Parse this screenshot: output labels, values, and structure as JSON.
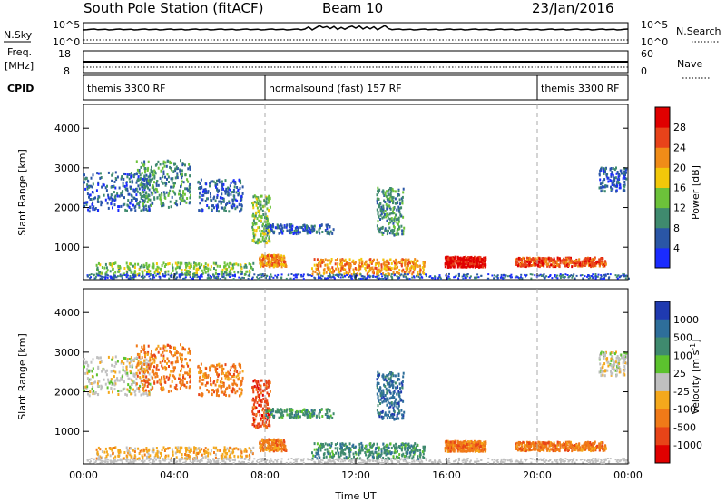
{
  "header": {
    "station": "South Pole Station (fitACF)",
    "beam": "Beam 10",
    "date": "23/Jan/2016"
  },
  "top_panels": {
    "nsky_label": "N.Sky",
    "nsky_ticks": [
      "10^5",
      "10^0"
    ],
    "nsearch_ticks": [
      "10^5",
      "10^0"
    ],
    "nsearch_label": "N.Search",
    "freq_label": "Freq.",
    "freq_unit": "[MHz]",
    "freq_ticks": [
      "18",
      "8"
    ],
    "nave_ticks": [
      "60",
      "0"
    ],
    "nave_label": "Nave",
    "cpid_label": "CPID",
    "cpid_segments": [
      {
        "start_hour": 0,
        "end_hour": 8,
        "label": "themis 3300 RF"
      },
      {
        "start_hour": 8,
        "end_hour": 20,
        "label": "normalsound (fast) 157 RF"
      },
      {
        "start_hour": 20,
        "end_hour": 24,
        "label": "themis 3300 RF"
      }
    ]
  },
  "chart_data": [
    {
      "type": "heatmap",
      "ylabel": "Slant Range [km]",
      "y_ticks": [
        "1000",
        "2000",
        "3000",
        "4000"
      ],
      "ylim": [
        180,
        4600
      ],
      "xlim": [
        0,
        24
      ],
      "colorbar": {
        "label": "Power [dB]",
        "ticks": [
          "4",
          "8",
          "12",
          "16",
          "20",
          "24",
          "28"
        ],
        "colors": [
          "#1a2bff",
          "#2a56a6",
          "#3f8a6e",
          "#6cc23a",
          "#f2c80a",
          "#f08c18",
          "#e8431a",
          "#e00000"
        ]
      }
    },
    {
      "type": "heatmap",
      "ylabel": "Slant Range [km]",
      "y_ticks": [
        "1000",
        "2000",
        "3000",
        "4000"
      ],
      "ylim": [
        180,
        4600
      ],
      "xlim": [
        0,
        24
      ],
      "xlabel": "Time UT",
      "x_ticks": [
        "00:00",
        "04:00",
        "08:00",
        "12:00",
        "16:00",
        "20:00",
        "00:00"
      ],
      "colorbar": {
        "label": "Velocity [m s",
        "label_sup": "-1",
        "label_end": "]",
        "ticks": [
          "1000",
          "500",
          "100",
          "25",
          "-25",
          "-100",
          "-500",
          "-1000"
        ],
        "colors": [
          "#1f3ab0",
          "#2e6e9a",
          "#3f8a6e",
          "#5cc22e",
          "#c0c0c0",
          "#f4a81c",
          "#f07a18",
          "#e84418",
          "#e00000"
        ]
      }
    }
  ]
}
